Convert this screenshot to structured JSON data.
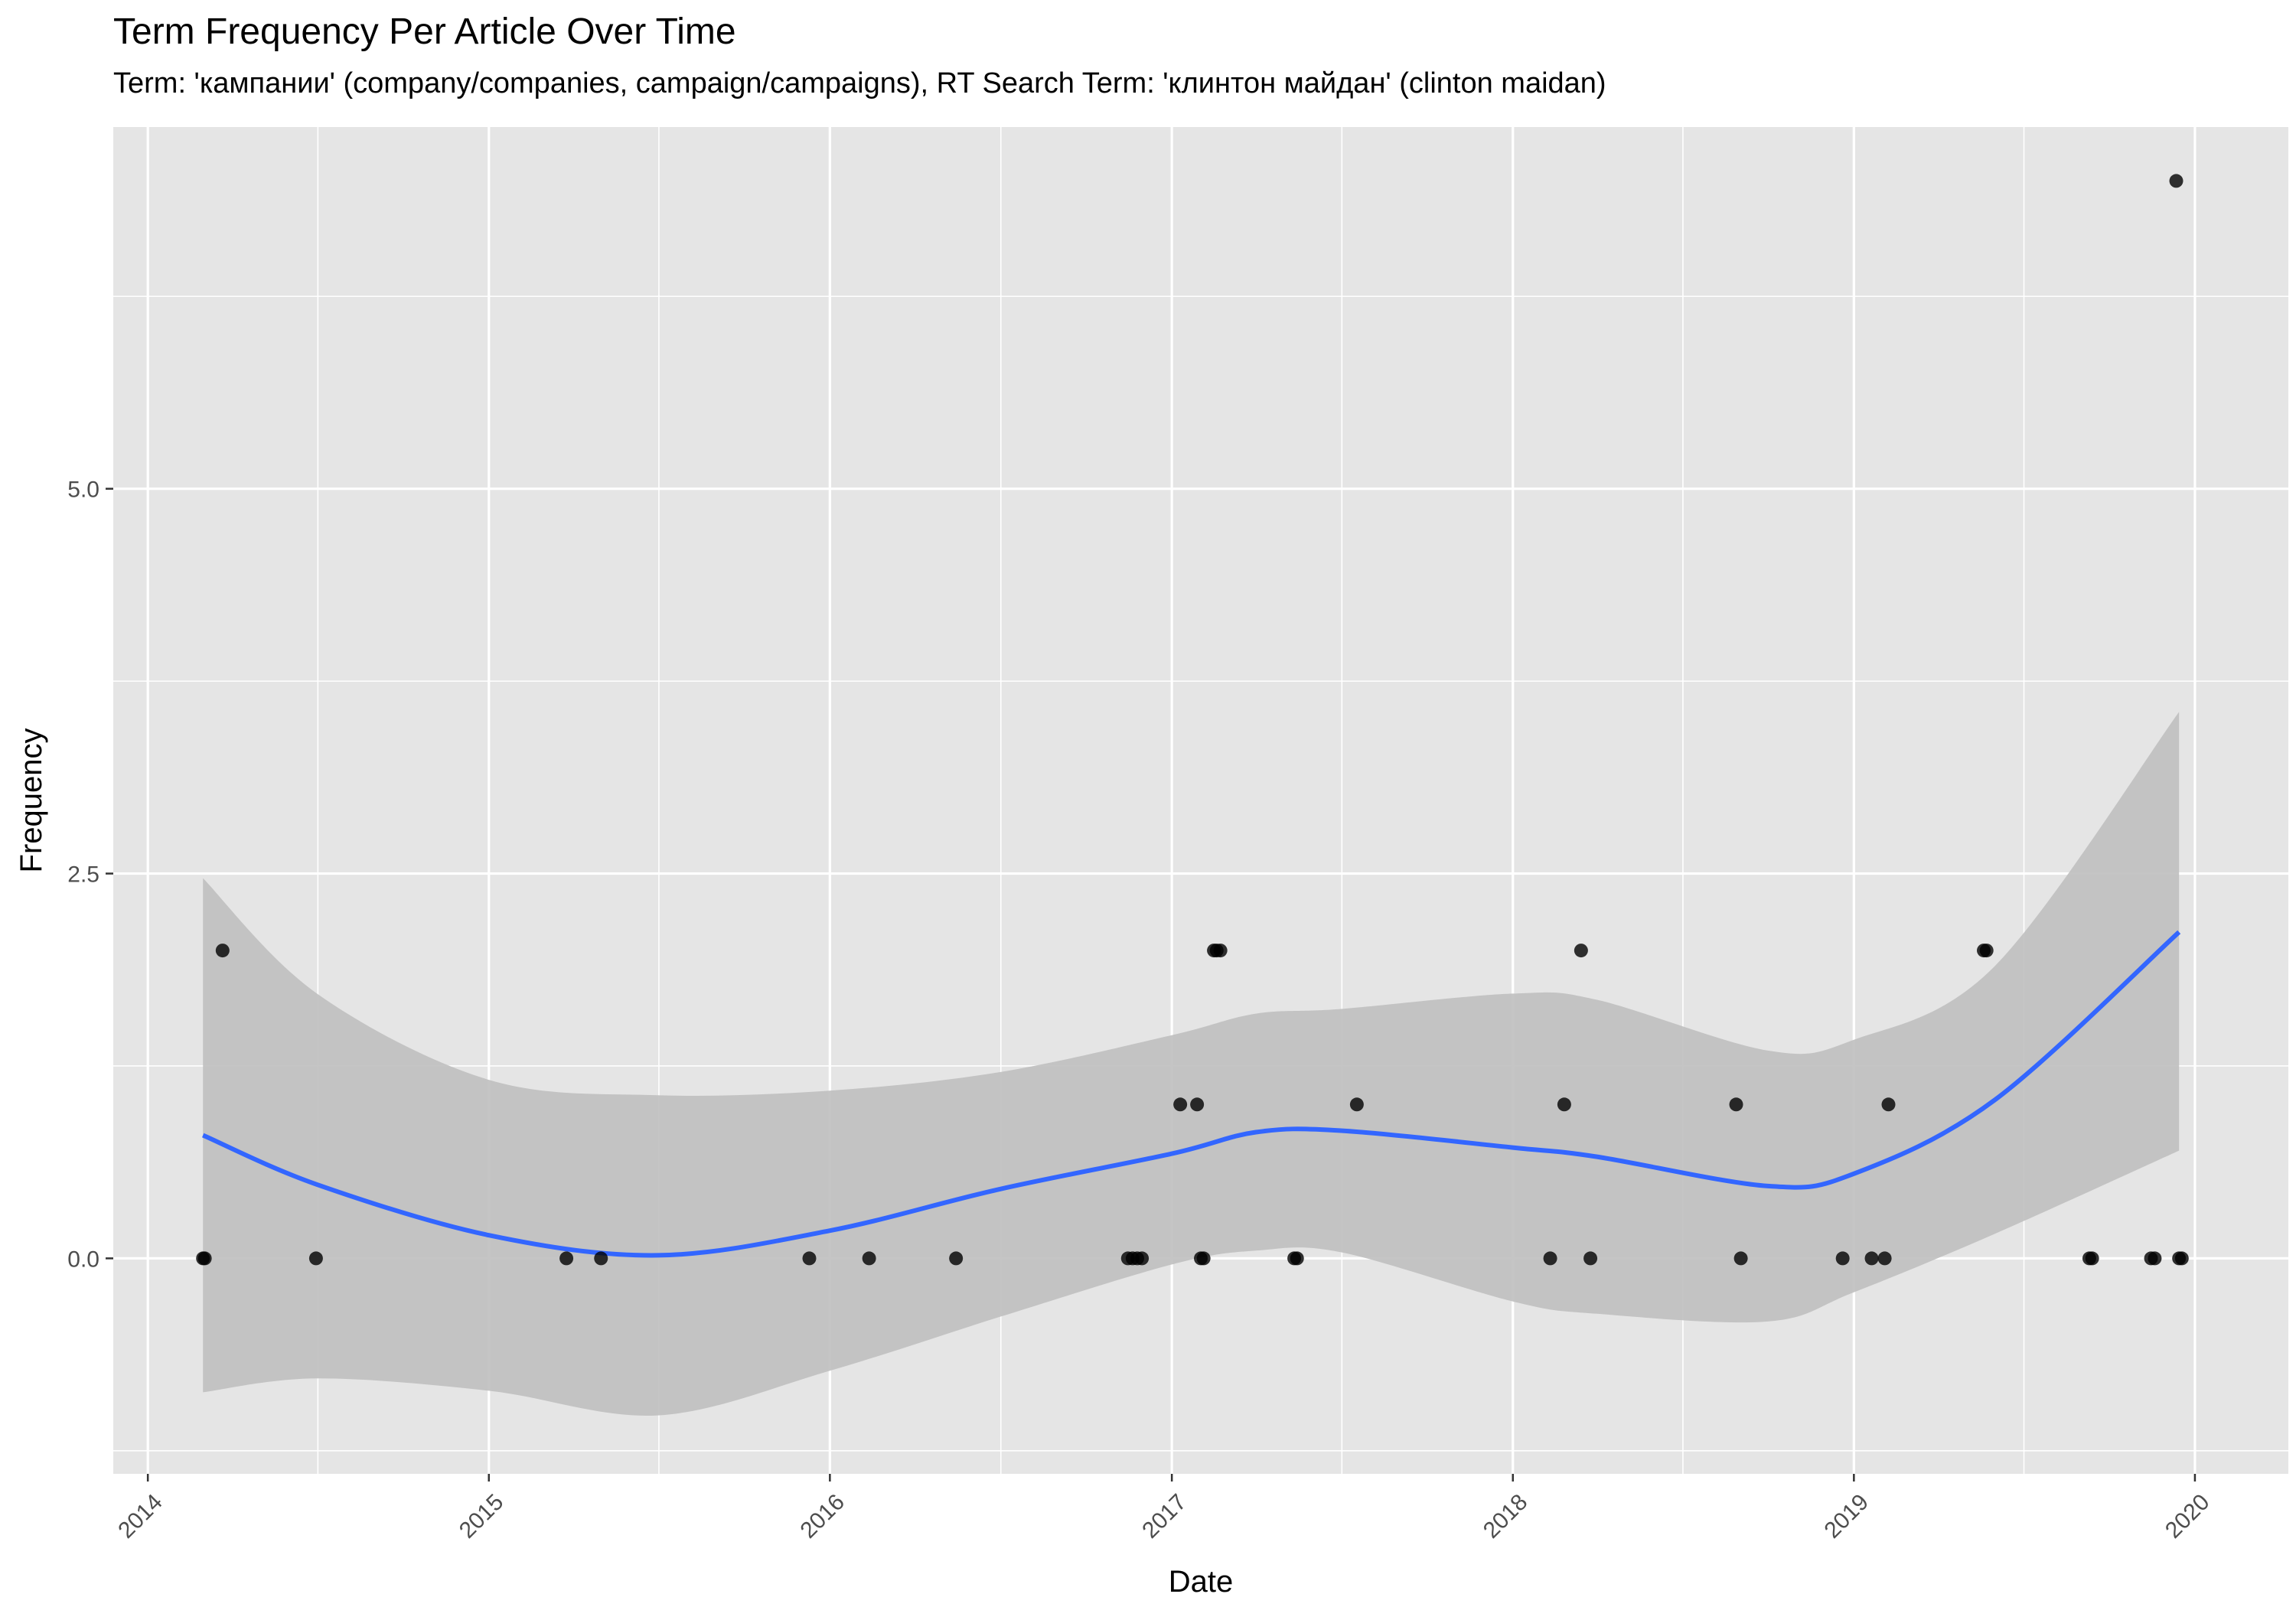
{
  "chart_data": {
    "type": "scatter",
    "title": "Term Frequency Per Article Over Time",
    "subtitle": "Term: 'кампании' (company/companies, campaign/campaigns), RT Search Term: 'клинтон майдан' (clinton maidan)",
    "xlabel": "Date",
    "ylabel": "Frequency",
    "x_ticks": [
      "2014",
      "2015",
      "2016",
      "2017",
      "2018",
      "2019",
      "2020"
    ],
    "y_ticks": [
      "0.0",
      "2.5",
      "5.0"
    ],
    "xlim": [
      "2013-11-25",
      "2020-04-10"
    ],
    "ylim": [
      -1.4,
      7.35
    ],
    "grid": true,
    "colors": {
      "panel": "#e5e5e5",
      "grid": "#ffffff",
      "points": "#000000",
      "smooth_line": "#3366ff",
      "ribbon": "#bfbfbf"
    },
    "points": [
      {
        "x": "2014-03-01",
        "y": 0
      },
      {
        "x": "2014-03-03",
        "y": 0
      },
      {
        "x": "2014-03-22",
        "y": 2
      },
      {
        "x": "2014-06-30",
        "y": 0
      },
      {
        "x": "2015-03-25",
        "y": 0
      },
      {
        "x": "2015-05-01",
        "y": 0
      },
      {
        "x": "2015-12-10",
        "y": 0
      },
      {
        "x": "2016-02-12",
        "y": 0
      },
      {
        "x": "2016-05-15",
        "y": 0
      },
      {
        "x": "2016-11-15",
        "y": 0
      },
      {
        "x": "2016-11-20",
        "y": 0
      },
      {
        "x": "2016-11-25",
        "y": 0
      },
      {
        "x": "2016-11-30",
        "y": 0
      },
      {
        "x": "2017-01-10",
        "y": 1
      },
      {
        "x": "2017-01-28",
        "y": 1
      },
      {
        "x": "2017-02-01",
        "y": 0
      },
      {
        "x": "2017-02-04",
        "y": 0
      },
      {
        "x": "2017-02-15",
        "y": 2
      },
      {
        "x": "2017-02-18",
        "y": 2
      },
      {
        "x": "2017-02-22",
        "y": 2
      },
      {
        "x": "2017-05-12",
        "y": 0
      },
      {
        "x": "2017-05-15",
        "y": 0
      },
      {
        "x": "2017-07-18",
        "y": 1
      },
      {
        "x": "2018-02-10",
        "y": 0
      },
      {
        "x": "2018-02-25",
        "y": 1
      },
      {
        "x": "2018-03-15",
        "y": 2
      },
      {
        "x": "2018-03-25",
        "y": 0
      },
      {
        "x": "2018-08-28",
        "y": 1
      },
      {
        "x": "2018-09-02",
        "y": 0
      },
      {
        "x": "2018-12-20",
        "y": 0
      },
      {
        "x": "2019-01-20",
        "y": 0
      },
      {
        "x": "2019-02-03",
        "y": 0
      },
      {
        "x": "2019-02-07",
        "y": 1
      },
      {
        "x": "2019-05-20",
        "y": 2
      },
      {
        "x": "2019-05-23",
        "y": 2
      },
      {
        "x": "2019-09-10",
        "y": 0
      },
      {
        "x": "2019-09-13",
        "y": 0
      },
      {
        "x": "2019-11-15",
        "y": 0
      },
      {
        "x": "2019-11-19",
        "y": 0
      },
      {
        "x": "2019-12-12",
        "y": 7
      },
      {
        "x": "2019-12-15",
        "y": 0
      },
      {
        "x": "2019-12-18",
        "y": 0
      }
    ],
    "smooth": [
      {
        "x": "2014-03-01",
        "y": 0.8,
        "lo": -0.87,
        "hi": 2.47
      },
      {
        "x": "2014-07-01",
        "y": 0.48,
        "lo": -0.78,
        "hi": 1.72
      },
      {
        "x": "2015-01-01",
        "y": 0.15,
        "lo": -0.86,
        "hi": 1.16
      },
      {
        "x": "2015-07-01",
        "y": 0.02,
        "lo": -1.02,
        "hi": 1.06
      },
      {
        "x": "2016-01-01",
        "y": 0.18,
        "lo": -0.73,
        "hi": 1.09
      },
      {
        "x": "2016-07-01",
        "y": 0.45,
        "lo": -0.38,
        "hi": 1.21
      },
      {
        "x": "2017-01-01",
        "y": 0.68,
        "lo": -0.04,
        "hi": 1.45
      },
      {
        "x": "2017-04-01",
        "y": 0.82,
        "lo": 0.05,
        "hi": 1.59
      },
      {
        "x": "2017-07-01",
        "y": 0.83,
        "lo": 0.04,
        "hi": 1.62
      },
      {
        "x": "2018-01-01",
        "y": 0.72,
        "lo": -0.28,
        "hi": 1.72
      },
      {
        "x": "2018-04-01",
        "y": 0.66,
        "lo": -0.36,
        "hi": 1.68
      },
      {
        "x": "2018-10-01",
        "y": 0.47,
        "lo": -0.41,
        "hi": 1.35
      },
      {
        "x": "2019-01-01",
        "y": 0.55,
        "lo": -0.22,
        "hi": 1.42
      },
      {
        "x": "2019-06-01",
        "y": 1.03,
        "lo": 0.16,
        "hi": 1.9
      },
      {
        "x": "2019-12-15",
        "y": 2.12,
        "lo": 0.7,
        "hi": 3.55
      }
    ]
  }
}
